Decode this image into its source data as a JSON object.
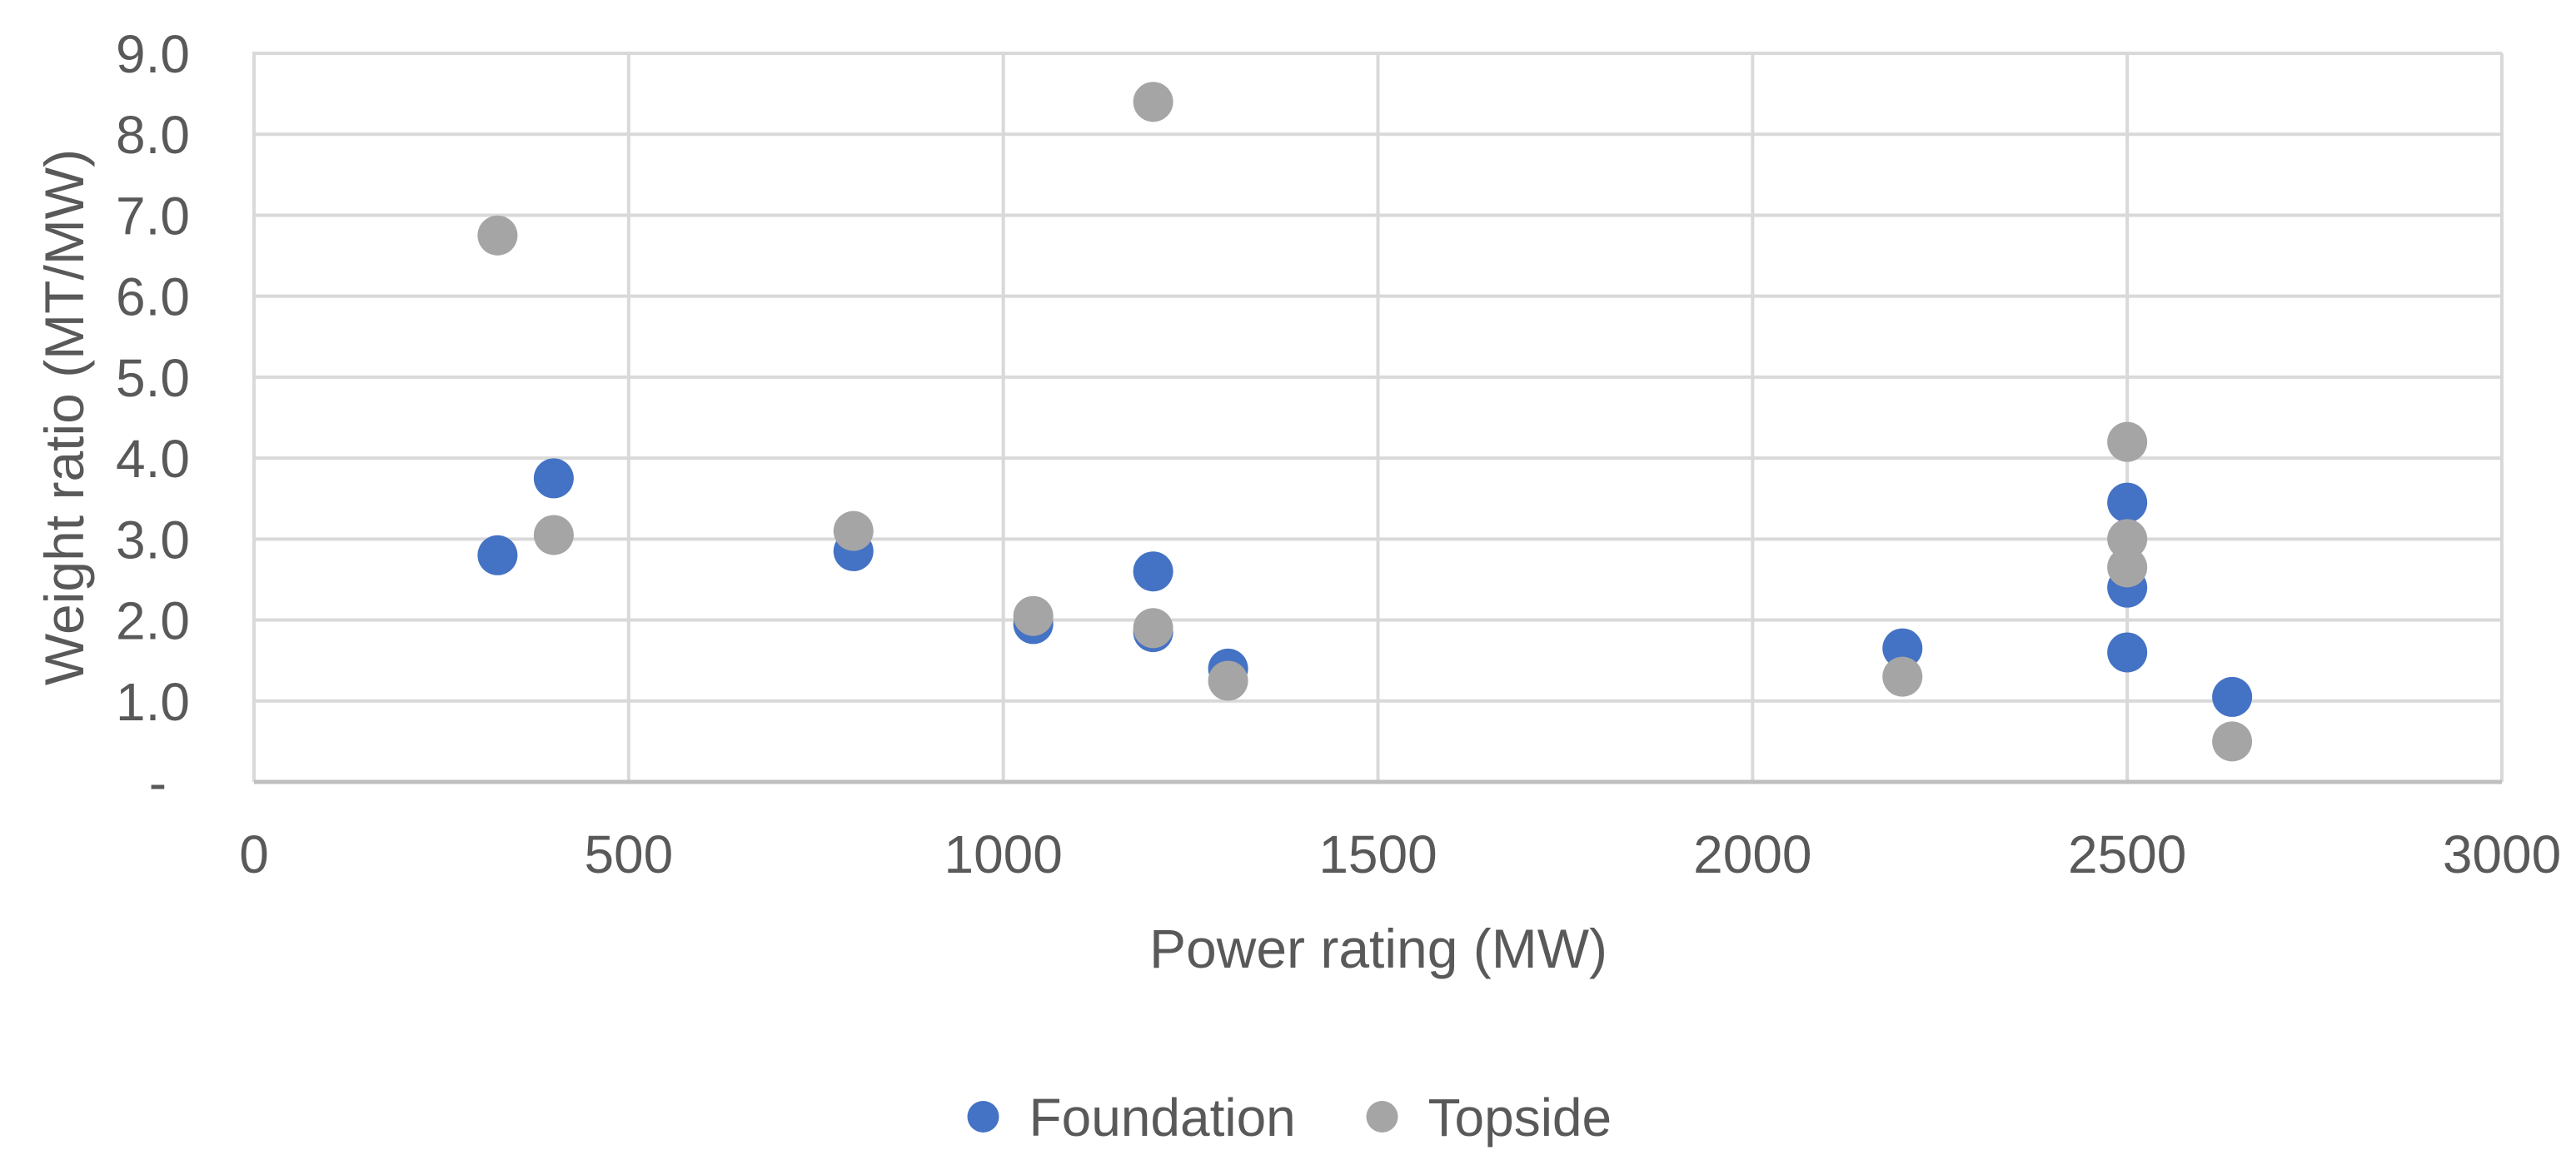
{
  "chart_data": {
    "type": "scatter",
    "title": "",
    "xlabel": "Power rating (MW)",
    "ylabel": "Weight ratio (MT/MW)",
    "xlim": [
      0,
      3000
    ],
    "ylim": [
      0,
      9
    ],
    "grid": true,
    "legend_position": "bottom-center",
    "x_ticks": [
      {
        "value": 0,
        "label": "0"
      },
      {
        "value": 500,
        "label": "500"
      },
      {
        "value": 1000,
        "label": "1000"
      },
      {
        "value": 1500,
        "label": "1500"
      },
      {
        "value": 2000,
        "label": "2000"
      },
      {
        "value": 2500,
        "label": "2500"
      },
      {
        "value": 3000,
        "label": "3000"
      }
    ],
    "y_ticks": [
      {
        "value": 9,
        "label": "9.0"
      },
      {
        "value": 8,
        "label": "8.0"
      },
      {
        "value": 7,
        "label": "7.0"
      },
      {
        "value": 6,
        "label": "6.0"
      },
      {
        "value": 5,
        "label": "5.0"
      },
      {
        "value": 4,
        "label": "4.0"
      },
      {
        "value": 3,
        "label": "3.0"
      },
      {
        "value": 2,
        "label": "2.0"
      },
      {
        "value": 1,
        "label": "1.0"
      },
      {
        "value": 0,
        "label": "-"
      }
    ],
    "series": [
      {
        "name": "Foundation",
        "color": "#4472C4",
        "points": [
          [
            325,
            2.8
          ],
          [
            400,
            3.75
          ],
          [
            800,
            2.85
          ],
          [
            1040,
            1.95
          ],
          [
            1200,
            2.6
          ],
          [
            1200,
            1.85
          ],
          [
            1300,
            1.4
          ],
          [
            2200,
            1.65
          ],
          [
            2500,
            3.45
          ],
          [
            2500,
            2.4
          ],
          [
            2500,
            1.6
          ],
          [
            2640,
            1.05
          ]
        ]
      },
      {
        "name": "Topside",
        "color": "#A5A5A5",
        "points": [
          [
            325,
            6.75
          ],
          [
            400,
            3.05
          ],
          [
            800,
            3.1
          ],
          [
            1040,
            2.05
          ],
          [
            1200,
            8.4
          ],
          [
            1200,
            1.9
          ],
          [
            1300,
            1.25
          ],
          [
            2200,
            1.3
          ],
          [
            2500,
            4.2
          ],
          [
            2500,
            3.0
          ],
          [
            2500,
            2.65
          ],
          [
            2640,
            0.5
          ]
        ]
      }
    ]
  },
  "legend": {
    "items": [
      {
        "label": "Foundation",
        "color": "#4472C4"
      },
      {
        "label": "Topside",
        "color": "#A5A5A5"
      }
    ]
  },
  "styles": {
    "text_color": "#595959",
    "gridline_color": "#D9D9D9",
    "axis_line_color": "#BFBFBF",
    "background": "#FFFFFF",
    "marker_color_foundation": "#4472C4",
    "marker_color_topside": "#A5A5A5"
  }
}
